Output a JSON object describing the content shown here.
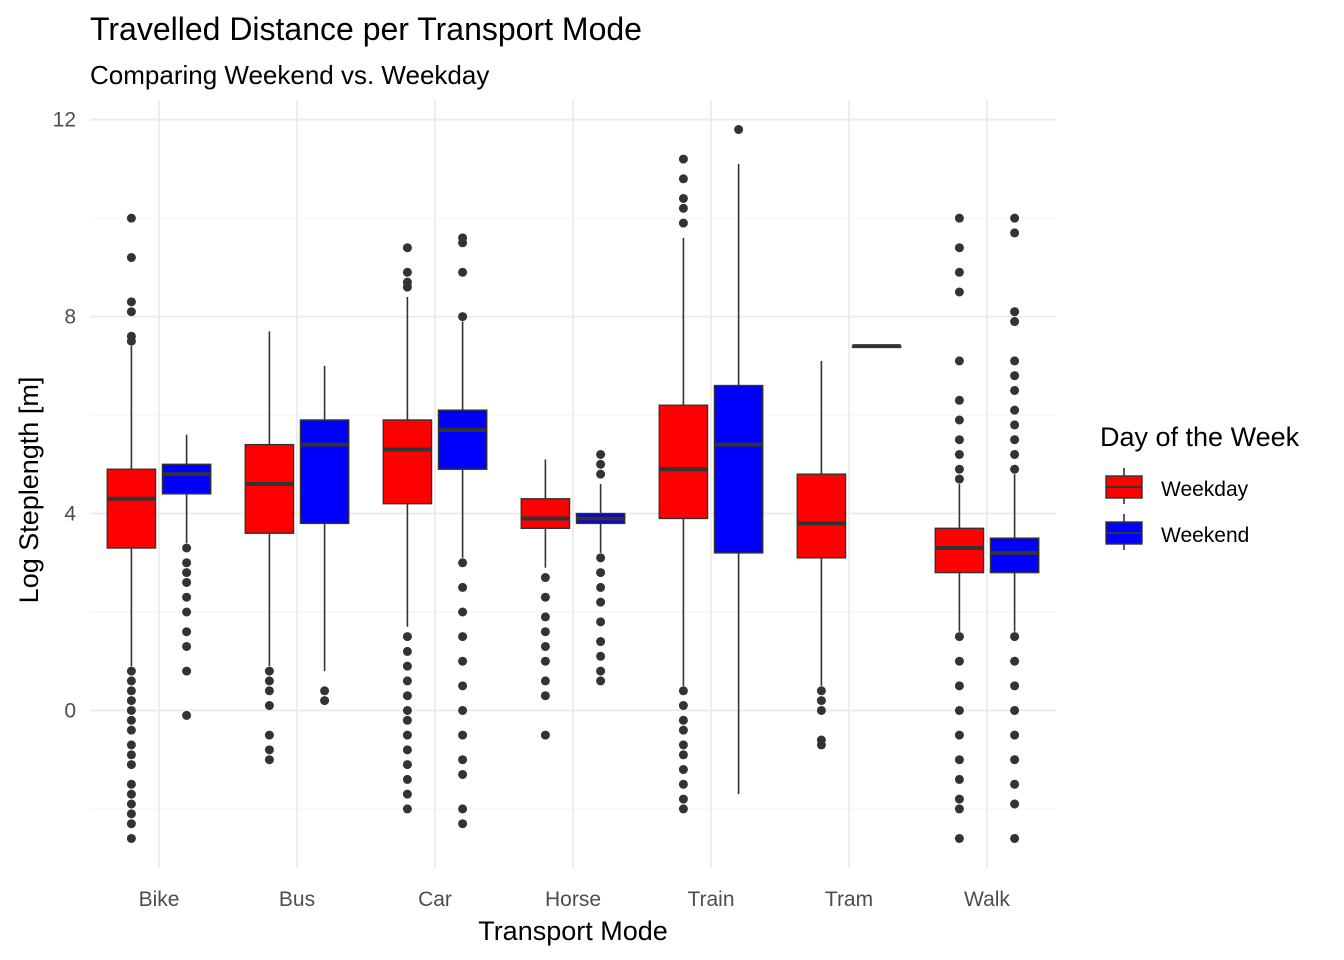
{
  "chart_data": {
    "type": "box",
    "title": "Travelled Distance per Transport Mode",
    "subtitle": "Comparing Weekend vs. Weekday",
    "xlabel": "Transport Mode",
    "ylabel": "Log Steplength [m]",
    "ylim": [
      -3.2,
      12.4
    ],
    "yticks": [
      0,
      4,
      8,
      12
    ],
    "grid": true,
    "legend": {
      "title": "Day of the Week",
      "position": "right",
      "entries": [
        {
          "name": "Weekday",
          "color": "#ff0000"
        },
        {
          "name": "Weekend",
          "color": "#0000ff"
        }
      ]
    },
    "categories": [
      "Bike",
      "Bus",
      "Car",
      "Horse",
      "Train",
      "Tram",
      "Walk"
    ],
    "series": [
      {
        "name": "Weekday",
        "color": "#ff0000",
        "boxes": [
          {
            "min": 0.9,
            "q1": 3.3,
            "median": 4.3,
            "q3": 4.9,
            "max": 7.4,
            "outliers": [
              10.0,
              9.2,
              8.3,
              8.1,
              7.6,
              7.5,
              0.8,
              0.6,
              0.4,
              0.2,
              0.0,
              -0.2,
              -0.4,
              -0.7,
              -0.9,
              -1.1,
              -1.5,
              -1.7,
              -1.9,
              -2.1,
              -2.3,
              -2.6
            ]
          },
          {
            "min": 0.9,
            "q1": 3.6,
            "median": 4.6,
            "q3": 5.4,
            "max": 7.7,
            "outliers": [
              0.8,
              0.6,
              0.4,
              0.1,
              -0.5,
              -0.8,
              -1.0
            ]
          },
          {
            "min": 1.7,
            "q1": 4.2,
            "median": 5.3,
            "q3": 5.9,
            "max": 8.4,
            "outliers": [
              9.4,
              8.9,
              8.7,
              8.6,
              1.5,
              1.2,
              0.9,
              0.6,
              0.3,
              0.0,
              -0.2,
              -0.5,
              -0.8,
              -1.1,
              -1.4,
              -1.7,
              -2.0
            ]
          },
          {
            "min": 2.9,
            "q1": 3.7,
            "median": 3.9,
            "q3": 4.3,
            "max": 5.1,
            "outliers": [
              2.7,
              2.3,
              1.9,
              1.6,
              1.3,
              1.0,
              0.6,
              0.3,
              -0.5
            ]
          },
          {
            "min": 0.5,
            "q1": 3.9,
            "median": 4.9,
            "q3": 6.2,
            "max": 9.6,
            "outliers": [
              11.2,
              10.8,
              10.4,
              10.2,
              9.9,
              0.4,
              0.1,
              -0.2,
              -0.4,
              -0.7,
              -0.9,
              -1.2,
              -1.5,
              -1.8,
              -2.0
            ]
          },
          {
            "min": 0.5,
            "q1": 3.1,
            "median": 3.8,
            "q3": 4.8,
            "max": 7.1,
            "outliers": [
              0.4,
              0.2,
              0.0,
              -0.6,
              -0.7
            ]
          },
          {
            "min": 1.6,
            "q1": 2.8,
            "median": 3.3,
            "q3": 3.7,
            "max": 4.6,
            "outliers": [
              10.0,
              9.4,
              8.9,
              8.5,
              7.1,
              6.3,
              5.9,
              5.5,
              5.2,
              4.9,
              4.7,
              1.5,
              1.0,
              0.5,
              0.0,
              -0.5,
              -1.0,
              -1.4,
              -1.8,
              -2.0,
              -2.6
            ]
          }
        ]
      },
      {
        "name": "Weekend",
        "color": "#0000ff",
        "boxes": [
          {
            "min": 3.4,
            "q1": 4.4,
            "median": 4.8,
            "q3": 5.0,
            "max": 5.6,
            "outliers": [
              3.3,
              3.0,
              2.8,
              2.6,
              2.3,
              2.0,
              1.6,
              1.3,
              0.8,
              -0.1
            ]
          },
          {
            "min": 0.8,
            "q1": 3.8,
            "median": 5.4,
            "q3": 5.9,
            "max": 7.0,
            "outliers": [
              0.4,
              0.2
            ]
          },
          {
            "min": 3.1,
            "q1": 4.9,
            "median": 5.7,
            "q3": 6.1,
            "max": 7.9,
            "outliers": [
              9.6,
              9.5,
              8.9,
              8.0,
              3.0,
              2.5,
              2.0,
              1.5,
              1.0,
              0.5,
              0.0,
              -0.5,
              -1.0,
              -1.3,
              -2.0,
              -2.3
            ]
          },
          {
            "min": 3.2,
            "q1": 3.8,
            "median": 3.9,
            "q3": 4.0,
            "max": 4.6,
            "outliers": [
              5.2,
              5.0,
              4.8,
              3.1,
              2.8,
              2.5,
              2.2,
              1.8,
              1.4,
              1.1,
              0.8,
              0.6
            ]
          },
          {
            "min": -1.7,
            "q1": 3.2,
            "median": 5.4,
            "q3": 6.6,
            "max": 11.1,
            "outliers": [
              11.8
            ]
          },
          {
            "min": 7.4,
            "q1": 7.4,
            "median": 7.4,
            "q3": 7.4,
            "max": 7.4,
            "outliers": []
          },
          {
            "min": 1.6,
            "q1": 2.8,
            "median": 3.2,
            "q3": 3.5,
            "max": 4.8,
            "outliers": [
              10.0,
              9.7,
              8.1,
              7.9,
              7.1,
              6.8,
              6.5,
              6.1,
              5.8,
              5.5,
              5.2,
              4.9,
              1.5,
              1.0,
              0.5,
              0.0,
              -0.5,
              -1.0,
              -1.5,
              -1.9,
              -2.6
            ]
          }
        ]
      }
    ]
  }
}
